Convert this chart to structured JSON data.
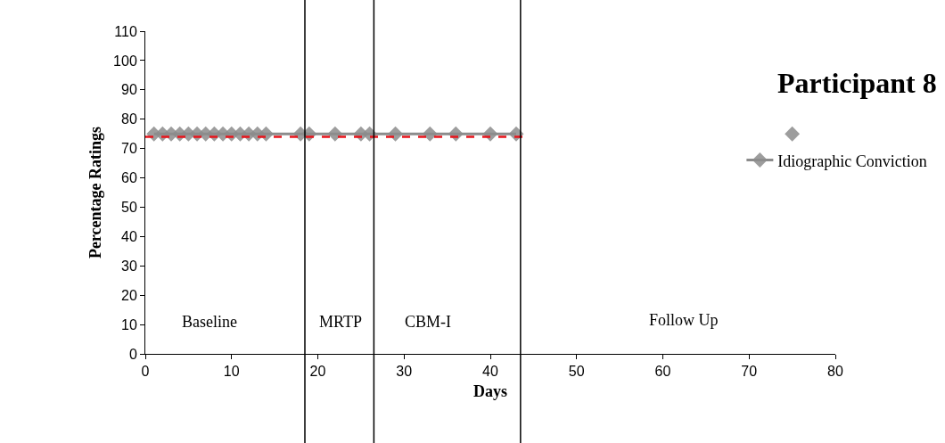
{
  "chart_data": {
    "type": "line",
    "title": "Participant 8",
    "xlabel": "Days",
    "ylabel": "Percentage Ratings",
    "series": [
      {
        "name": "Idiographic Conviction",
        "color": "#8c8c8c",
        "marker": "diamond",
        "x": [
          1,
          2,
          3,
          4,
          5,
          6,
          7,
          8,
          9,
          10,
          11,
          12,
          13,
          14,
          18,
          19,
          22,
          25,
          26,
          29,
          33,
          36,
          40,
          43
        ],
        "values": [
          75,
          75,
          75,
          75,
          75,
          75,
          75,
          75,
          75,
          75,
          75,
          75,
          75,
          75,
          75,
          75,
          75,
          75,
          75,
          75,
          75,
          75,
          75,
          75
        ]
      },
      {
        "type": "scatter",
        "color": "#8c8c8c",
        "marker": "diamond",
        "x": [
          75
        ],
        "values": [
          75
        ]
      },
      {
        "type": "line",
        "color": "#e8141b",
        "line_style": "dashed",
        "marker": "none",
        "x": [
          0,
          44
        ],
        "values": [
          74,
          74
        ]
      }
    ],
    "xlim": [
      0,
      80
    ],
    "xticks": [
      0,
      10,
      20,
      30,
      40,
      50,
      60,
      70,
      80
    ],
    "ylim": [
      0,
      110
    ],
    "yticks": [
      0,
      10,
      20,
      30,
      40,
      50,
      60,
      70,
      80,
      90,
      100,
      110
    ],
    "ref_lines": [
      {
        "axis": "x",
        "value": 18.5,
        "color": "#000000"
      },
      {
        "axis": "x",
        "value": 26.5,
        "color": "#000000"
      },
      {
        "axis": "x",
        "value": 43.5,
        "color": "#000000"
      }
    ],
    "annotations": [
      "Baseline",
      "MRTP",
      "CBM-I",
      "Follow Up"
    ],
    "legend": "top right"
  }
}
